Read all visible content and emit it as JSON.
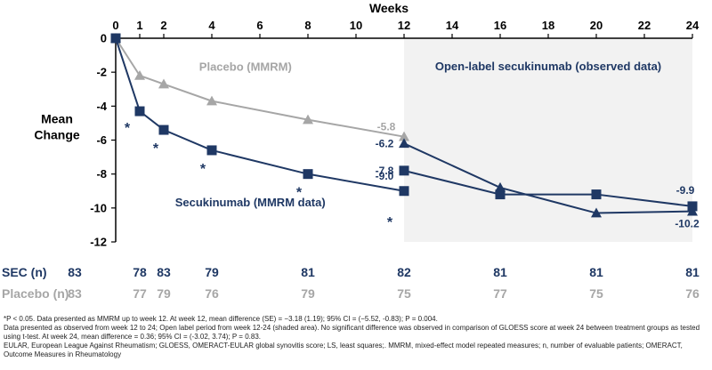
{
  "chart_data": {
    "type": "line",
    "xlabel": "Weeks",
    "ylabel_line1": "Mean",
    "ylabel_line2": "Change",
    "xlim": [
      0,
      24
    ],
    "ylim": [
      -12,
      0
    ],
    "x_ticks": [
      0,
      2,
      4,
      6,
      8,
      10,
      12,
      14,
      16,
      18,
      20,
      22,
      24
    ],
    "x_tick_labels": [
      "0",
      "2",
      "4",
      "6",
      "8",
      "10",
      "12",
      "14",
      "16",
      "18",
      "20",
      "22",
      "24"
    ],
    "x_extra_tick": {
      "value": 1,
      "label": "1"
    },
    "y_ticks": [
      0,
      -2,
      -4,
      -6,
      -8,
      -10,
      -12
    ],
    "y_tick_labels": [
      "0",
      "-2",
      "-4",
      "-6",
      "-8",
      "-10",
      "-12"
    ],
    "shaded_region": {
      "x_from": 12,
      "x_to": 24,
      "label": "Open-label secukinumab (observed data)"
    },
    "series": [
      {
        "name": "Placebo (MMRM)",
        "color": "#a6a6a6",
        "marker": "triangle",
        "x": [
          0,
          1,
          2,
          4,
          8,
          12
        ],
        "y": [
          0,
          -2.2,
          -2.7,
          -3.7,
          -4.8,
          -5.8
        ]
      },
      {
        "name": "Secukinumab (MMRM data)",
        "color": "#1f3864",
        "marker": "square",
        "x": [
          0,
          1,
          2,
          4,
          8,
          12
        ],
        "y": [
          0,
          -4.3,
          -5.4,
          -6.6,
          -8.0,
          -9.0
        ]
      },
      {
        "name": "",
        "color": "#1f3864",
        "marker": "square",
        "x": [
          12,
          16,
          20,
          24
        ],
        "y": [
          -7.8,
          -9.2,
          -9.2,
          -9.9
        ]
      },
      {
        "name": "",
        "color": "#1f3864",
        "marker": "triangle",
        "x": [
          12,
          16,
          20,
          24
        ],
        "y": [
          -6.2,
          -8.8,
          -10.3,
          -10.2
        ]
      }
    ],
    "significance_markers": [
      {
        "x": 1,
        "y": -4.3,
        "label": "*"
      },
      {
        "x": 2,
        "y": -5.4,
        "label": "*"
      },
      {
        "x": 4,
        "y": -6.6,
        "label": "*"
      },
      {
        "x": 8,
        "y": -8.0,
        "label": "*"
      },
      {
        "x": 12,
        "y": -9.0,
        "label": "*"
      }
    ],
    "annotations": [
      {
        "text": "-5.8",
        "x": 12,
        "y": -5.8,
        "style": "gray"
      },
      {
        "text": "-6.2",
        "x": 12,
        "y": -6.2,
        "style": "blue"
      },
      {
        "text": "-7.8",
        "x": 12,
        "y": -7.8,
        "style": "blue"
      },
      {
        "text": "-9.0",
        "x": 12,
        "y": -9.0,
        "style": "blue"
      },
      {
        "text": "-9.9",
        "x": 24,
        "y": -9.9,
        "style": "blue"
      },
      {
        "text": "-10.2",
        "x": 24,
        "y": -10.2,
        "style": "blue"
      }
    ]
  },
  "n_table": {
    "weeks": [
      0,
      1,
      2,
      4,
      8,
      12,
      16,
      20,
      24
    ],
    "rows": [
      {
        "label": "SEC (n)",
        "values": [
          "83",
          "78",
          "83",
          "79",
          "81",
          "82",
          "81",
          "81",
          "81"
        ]
      },
      {
        "label": "Placebo (n)",
        "values": [
          "83",
          "77",
          "79",
          "76",
          "79",
          "75",
          "77",
          "75",
          "76"
        ]
      }
    ]
  },
  "footnotes": [
    "*P < 0.05. Data presented as MMRM  up to week 12. At week 12, mean difference (SE) = −3.18 (1.19); 95% CI = (−5.52, -0.83); P = 0.004.",
    "Data presented as observed from week 12 to 24; Open label period from week 12-24 (shaded area). No significant difference was observed in comparison of GLOESS score at week 24 between treatment groups as tested using t-test. At week 24, mean difference = 0.36; 95% CI = (-3.02, 3.74); P = 0.83.",
    "EULAR, European League Against Rheumatism; GLOESS, OMERACT-EULAR global synovitis score; LS, least squares;. MMRM,  mixed-effect model repeated measures; n, number of evaluable patients; OMERACT, Outcome Measures in Rheumatology"
  ]
}
